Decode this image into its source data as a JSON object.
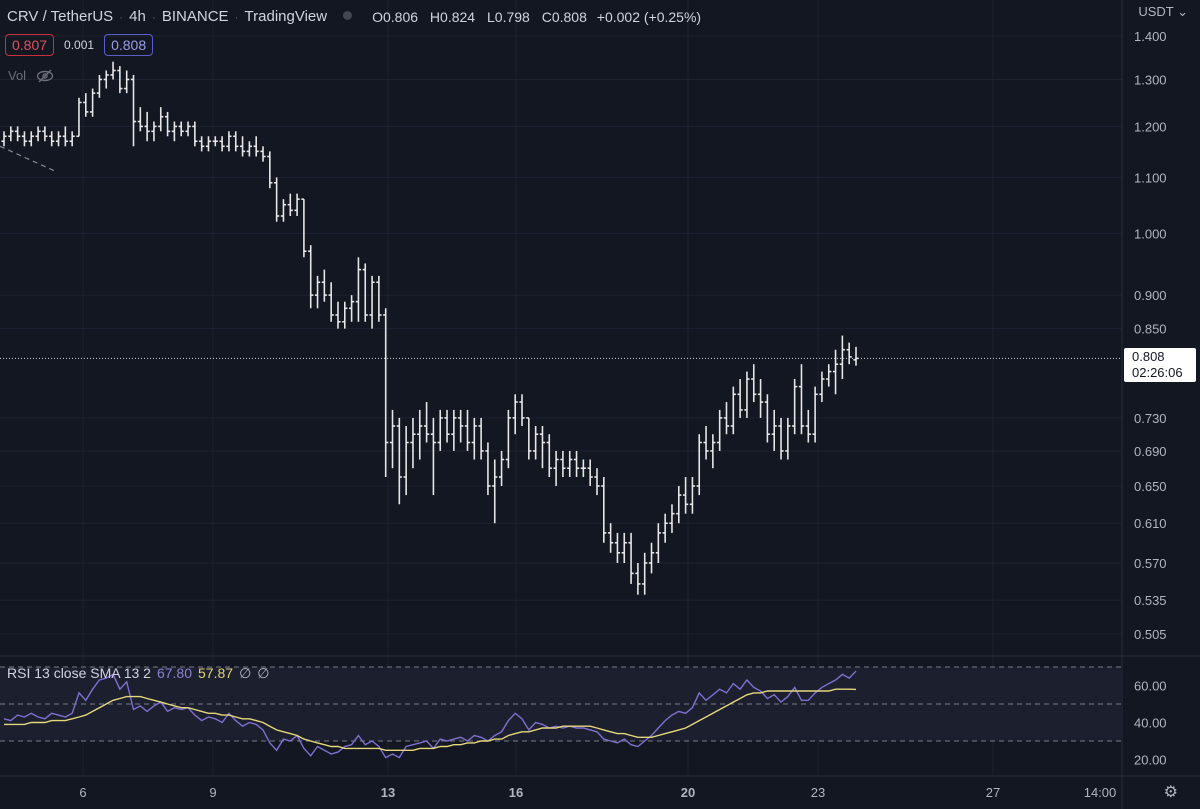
{
  "header": {
    "symbol": "CRV / TetherUS",
    "interval": "4h",
    "exchange": "BINANCE",
    "source": "TradingView",
    "ohlc": [
      {
        "k": "O",
        "v": "0.806"
      },
      {
        "k": "H",
        "v": "0.824"
      },
      {
        "k": "L",
        "v": "0.798"
      },
      {
        "k": "C",
        "v": "0.808"
      }
    ],
    "change": "+0.002 (+0.25%)"
  },
  "quote": {
    "bid": "0.807",
    "spread": "0.001",
    "ask": "0.808"
  },
  "volume_label": "Vol",
  "currency": "USDT",
  "price_tag": {
    "price": "0.808",
    "countdown": "02:26:06"
  },
  "rsi_legend": {
    "label": "RSI 13 close SMA 13 2",
    "rsi": "67.80",
    "sma": "57.87",
    "na1": "∅",
    "na2": "∅"
  },
  "colors": {
    "background": "#131722",
    "bars": "#e6e6e6",
    "rsi_line": "#7e6fd0",
    "sma_line": "#e6d77e",
    "grid": "#1e2230"
  },
  "chart_data": [
    {
      "type": "ohlc",
      "scale": "log",
      "y_ticks": [
        "1.400",
        "1.300",
        "1.200",
        "1.100",
        "1.000",
        "0.900",
        "0.850",
        "0.808",
        "0.730",
        "0.690",
        "0.650",
        "0.610",
        "0.570",
        "0.535",
        "0.505"
      ],
      "x_ticks": [
        "6",
        "9",
        "13",
        "16",
        "20",
        "23",
        "27",
        "14:00"
      ],
      "bars": [
        [
          1.17,
          1.19,
          1.16,
          1.18
        ],
        [
          1.18,
          1.2,
          1.17,
          1.19
        ],
        [
          1.19,
          1.2,
          1.17,
          1.18
        ],
        [
          1.18,
          1.19,
          1.16,
          1.17
        ],
        [
          1.17,
          1.19,
          1.16,
          1.18
        ],
        [
          1.18,
          1.2,
          1.17,
          1.19
        ],
        [
          1.19,
          1.2,
          1.17,
          1.18
        ],
        [
          1.18,
          1.19,
          1.16,
          1.17
        ],
        [
          1.17,
          1.19,
          1.16,
          1.18
        ],
        [
          1.18,
          1.2,
          1.16,
          1.17
        ],
        [
          1.17,
          1.19,
          1.16,
          1.18
        ],
        [
          1.18,
          1.26,
          1.18,
          1.25
        ],
        [
          1.25,
          1.27,
          1.22,
          1.23
        ],
        [
          1.23,
          1.28,
          1.22,
          1.27
        ],
        [
          1.27,
          1.31,
          1.26,
          1.3
        ],
        [
          1.3,
          1.32,
          1.28,
          1.31
        ],
        [
          1.31,
          1.34,
          1.3,
          1.32
        ],
        [
          1.32,
          1.33,
          1.27,
          1.28
        ],
        [
          1.28,
          1.32,
          1.27,
          1.3
        ],
        [
          1.3,
          1.31,
          1.16,
          1.21
        ],
        [
          1.21,
          1.24,
          1.19,
          1.2
        ],
        [
          1.2,
          1.23,
          1.17,
          1.19
        ],
        [
          1.19,
          1.21,
          1.17,
          1.2
        ],
        [
          1.2,
          1.24,
          1.19,
          1.22
        ],
        [
          1.22,
          1.23,
          1.18,
          1.19
        ],
        [
          1.19,
          1.21,
          1.17,
          1.2
        ],
        [
          1.2,
          1.21,
          1.18,
          1.19
        ],
        [
          1.19,
          1.21,
          1.18,
          1.2
        ],
        [
          1.2,
          1.21,
          1.16,
          1.17
        ],
        [
          1.17,
          1.18,
          1.15,
          1.16
        ],
        [
          1.16,
          1.18,
          1.15,
          1.17
        ],
        [
          1.17,
          1.18,
          1.16,
          1.17
        ],
        [
          1.17,
          1.18,
          1.15,
          1.16
        ],
        [
          1.16,
          1.19,
          1.15,
          1.18
        ],
        [
          1.18,
          1.19,
          1.15,
          1.16
        ],
        [
          1.16,
          1.18,
          1.14,
          1.15
        ],
        [
          1.15,
          1.17,
          1.14,
          1.16
        ],
        [
          1.16,
          1.18,
          1.14,
          1.15
        ],
        [
          1.15,
          1.16,
          1.13,
          1.14
        ],
        [
          1.14,
          1.15,
          1.08,
          1.09
        ],
        [
          1.09,
          1.1,
          1.02,
          1.03
        ],
        [
          1.03,
          1.06,
          1.02,
          1.05
        ],
        [
          1.05,
          1.07,
          1.03,
          1.04
        ],
        [
          1.04,
          1.07,
          1.03,
          1.06
        ],
        [
          1.06,
          1.06,
          0.96,
          0.97
        ],
        [
          0.97,
          0.98,
          0.88,
          0.9
        ],
        [
          0.9,
          0.93,
          0.88,
          0.92
        ],
        [
          0.92,
          0.94,
          0.89,
          0.9
        ],
        [
          0.9,
          0.92,
          0.86,
          0.87
        ],
        [
          0.87,
          0.89,
          0.85,
          0.86
        ],
        [
          0.86,
          0.89,
          0.85,
          0.88
        ],
        [
          0.88,
          0.9,
          0.86,
          0.89
        ],
        [
          0.89,
          0.96,
          0.86,
          0.94
        ],
        [
          0.94,
          0.95,
          0.86,
          0.87
        ],
        [
          0.87,
          0.93,
          0.85,
          0.92
        ],
        [
          0.92,
          0.93,
          0.86,
          0.87
        ],
        [
          0.87,
          0.88,
          0.66,
          0.7
        ],
        [
          0.7,
          0.74,
          0.67,
          0.72
        ],
        [
          0.72,
          0.73,
          0.63,
          0.66
        ],
        [
          0.66,
          0.72,
          0.64,
          0.7
        ],
        [
          0.7,
          0.73,
          0.67,
          0.71
        ],
        [
          0.71,
          0.74,
          0.68,
          0.72
        ],
        [
          0.72,
          0.75,
          0.7,
          0.71
        ],
        [
          0.71,
          0.73,
          0.64,
          0.7
        ],
        [
          0.7,
          0.74,
          0.69,
          0.73
        ],
        [
          0.73,
          0.74,
          0.7,
          0.71
        ],
        [
          0.71,
          0.74,
          0.69,
          0.73
        ],
        [
          0.73,
          0.74,
          0.7,
          0.72
        ],
        [
          0.72,
          0.74,
          0.69,
          0.7
        ],
        [
          0.7,
          0.73,
          0.68,
          0.72
        ],
        [
          0.72,
          0.73,
          0.68,
          0.69
        ],
        [
          0.69,
          0.7,
          0.64,
          0.65
        ],
        [
          0.65,
          0.68,
          0.61,
          0.66
        ],
        [
          0.66,
          0.69,
          0.65,
          0.68
        ],
        [
          0.68,
          0.74,
          0.67,
          0.73
        ],
        [
          0.73,
          0.76,
          0.71,
          0.75
        ],
        [
          0.75,
          0.76,
          0.72,
          0.73
        ],
        [
          0.73,
          0.73,
          0.68,
          0.69
        ],
        [
          0.69,
          0.72,
          0.68,
          0.71
        ],
        [
          0.71,
          0.72,
          0.67,
          0.7
        ],
        [
          0.7,
          0.71,
          0.66,
          0.67
        ],
        [
          0.67,
          0.69,
          0.65,
          0.68
        ],
        [
          0.68,
          0.69,
          0.66,
          0.67
        ],
        [
          0.67,
          0.69,
          0.66,
          0.68
        ],
        [
          0.68,
          0.69,
          0.66,
          0.67
        ],
        [
          0.67,
          0.68,
          0.66,
          0.67
        ],
        [
          0.67,
          0.68,
          0.65,
          0.66
        ],
        [
          0.66,
          0.67,
          0.64,
          0.65
        ],
        [
          0.65,
          0.66,
          0.59,
          0.6
        ],
        [
          0.6,
          0.61,
          0.58,
          0.59
        ],
        [
          0.59,
          0.6,
          0.57,
          0.58
        ],
        [
          0.58,
          0.6,
          0.57,
          0.59
        ],
        [
          0.59,
          0.6,
          0.55,
          0.56
        ],
        [
          0.56,
          0.57,
          0.54,
          0.55
        ],
        [
          0.55,
          0.58,
          0.54,
          0.57
        ],
        [
          0.57,
          0.59,
          0.56,
          0.58
        ],
        [
          0.58,
          0.61,
          0.57,
          0.6
        ],
        [
          0.6,
          0.62,
          0.59,
          0.61
        ],
        [
          0.61,
          0.63,
          0.6,
          0.62
        ],
        [
          0.62,
          0.65,
          0.61,
          0.64
        ],
        [
          0.64,
          0.66,
          0.62,
          0.63
        ],
        [
          0.63,
          0.66,
          0.62,
          0.65
        ],
        [
          0.65,
          0.71,
          0.64,
          0.7
        ],
        [
          0.7,
          0.72,
          0.68,
          0.69
        ],
        [
          0.69,
          0.71,
          0.67,
          0.7
        ],
        [
          0.7,
          0.74,
          0.69,
          0.73
        ],
        [
          0.73,
          0.75,
          0.71,
          0.72
        ],
        [
          0.72,
          0.77,
          0.71,
          0.76
        ],
        [
          0.76,
          0.78,
          0.73,
          0.74
        ],
        [
          0.74,
          0.79,
          0.73,
          0.78
        ],
        [
          0.78,
          0.8,
          0.75,
          0.76
        ],
        [
          0.76,
          0.78,
          0.73,
          0.75
        ],
        [
          0.75,
          0.76,
          0.7,
          0.71
        ],
        [
          0.71,
          0.74,
          0.69,
          0.72
        ],
        [
          0.72,
          0.73,
          0.68,
          0.69
        ],
        [
          0.69,
          0.73,
          0.68,
          0.72
        ],
        [
          0.72,
          0.78,
          0.71,
          0.77
        ],
        [
          0.77,
          0.8,
          0.71,
          0.72
        ],
        [
          0.72,
          0.74,
          0.7,
          0.71
        ],
        [
          0.71,
          0.77,
          0.7,
          0.76
        ],
        [
          0.76,
          0.79,
          0.75,
          0.78
        ],
        [
          0.78,
          0.8,
          0.77,
          0.79
        ],
        [
          0.79,
          0.82,
          0.76,
          0.8
        ],
        [
          0.8,
          0.84,
          0.78,
          0.82
        ],
        [
          0.82,
          0.83,
          0.8,
          0.81
        ],
        [
          0.806,
          0.824,
          0.798,
          0.808
        ]
      ]
    },
    {
      "type": "line",
      "name": "RSI 13 close SMA 13 2",
      "y_ticks": [
        "60.00",
        "40.00",
        "20.00"
      ],
      "bands": [
        70,
        50,
        30
      ],
      "series": [
        {
          "name": "RSI",
          "values": [
            42,
            41,
            44,
            43,
            45,
            43,
            42,
            45,
            44,
            43,
            45,
            56,
            52,
            58,
            63,
            64,
            66,
            58,
            62,
            47,
            49,
            46,
            49,
            51,
            46,
            48,
            47,
            48,
            44,
            41,
            43,
            42,
            40,
            45,
            41,
            38,
            40,
            39,
            36,
            29,
            25,
            31,
            30,
            33,
            26,
            22,
            27,
            25,
            23,
            24,
            27,
            28,
            33,
            28,
            30,
            27,
            21,
            23,
            21,
            27,
            28,
            29,
            30,
            26,
            31,
            30,
            31,
            32,
            30,
            33,
            32,
            30,
            33,
            35,
            41,
            45,
            42,
            36,
            40,
            39,
            37,
            38,
            37,
            38,
            37,
            37,
            36,
            35,
            31,
            30,
            29,
            31,
            28,
            27,
            30,
            33,
            37,
            41,
            44,
            46,
            45,
            48,
            56,
            52,
            55,
            58,
            56,
            61,
            58,
            63,
            59,
            57,
            53,
            55,
            51,
            54,
            59,
            52,
            52,
            56,
            59,
            61,
            63,
            66,
            64,
            67.8
          ]
        },
        {
          "name": "SMA",
          "values": [
            39,
            39,
            39,
            39,
            40,
            40,
            40,
            41,
            41,
            41,
            42,
            43,
            44,
            46,
            48,
            50,
            52,
            53,
            54,
            54,
            54,
            53,
            52,
            51,
            50,
            49,
            48,
            48,
            47,
            46,
            45,
            45,
            44,
            44,
            43,
            42,
            42,
            41,
            40,
            38,
            36,
            35,
            34,
            33,
            31,
            30,
            29,
            28,
            27,
            27,
            26,
            26,
            26,
            26,
            26,
            26,
            25,
            25,
            25,
            25,
            25,
            26,
            26,
            26,
            27,
            27,
            28,
            28,
            29,
            29,
            30,
            30,
            31,
            31,
            33,
            34,
            35,
            35,
            36,
            37,
            37,
            37,
            38,
            38,
            38,
            38,
            38,
            37,
            36,
            35,
            34,
            34,
            33,
            32,
            32,
            32,
            33,
            34,
            35,
            36,
            37,
            39,
            41,
            43,
            45,
            47,
            49,
            51,
            53,
            55,
            56,
            56,
            57,
            57,
            57,
            57,
            57,
            57,
            57,
            57,
            57,
            57,
            58,
            58,
            58,
            57.87
          ]
        }
      ]
    }
  ]
}
